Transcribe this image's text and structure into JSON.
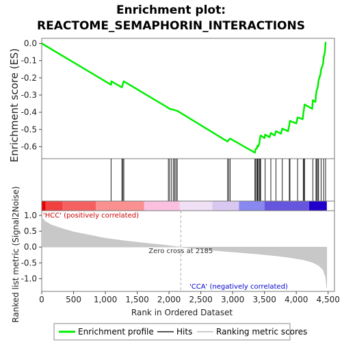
{
  "chart_data": {
    "type": "line",
    "title_line1": "Enrichment plot:",
    "title_line2": "REACTOME_SEMAPHORIN_INTERACTIONS",
    "es_panel": {
      "ylabel": "Enrichment score (ES)",
      "ylim": [
        -0.67,
        0.03
      ],
      "yticks": [
        "0.0",
        "-0.1",
        "-0.2",
        "-0.3",
        "-0.4",
        "-0.5",
        "-0.6"
      ],
      "ytick_values": [
        0.0,
        -0.1,
        -0.2,
        -0.3,
        -0.4,
        -0.5,
        -0.6
      ],
      "line_color": "#00ee00",
      "points": [
        [
          0,
          0.0
        ],
        [
          1090,
          -0.24
        ],
        [
          1095,
          -0.22
        ],
        [
          1260,
          -0.255
        ],
        [
          1275,
          -0.235
        ],
        [
          1290,
          -0.22
        ],
        [
          1990,
          -0.375
        ],
        [
          2010,
          -0.38
        ],
        [
          2040,
          -0.383
        ],
        [
          2070,
          -0.385
        ],
        [
          2090,
          -0.388
        ],
        [
          2110,
          -0.39
        ],
        [
          2130,
          -0.392
        ],
        [
          2920,
          -0.57
        ],
        [
          2940,
          -0.56
        ],
        [
          2960,
          -0.553
        ],
        [
          3350,
          -0.635
        ],
        [
          3360,
          -0.615
        ],
        [
          3380,
          -0.61
        ],
        [
          3390,
          -0.595
        ],
        [
          3400,
          -0.6
        ],
        [
          3420,
          -0.58
        ],
        [
          3430,
          -0.55
        ],
        [
          3440,
          -0.535
        ],
        [
          3500,
          -0.55
        ],
        [
          3510,
          -0.53
        ],
        [
          3580,
          -0.545
        ],
        [
          3600,
          -0.52
        ],
        [
          3660,
          -0.535
        ],
        [
          3680,
          -0.51
        ],
        [
          3760,
          -0.525
        ],
        [
          3780,
          -0.495
        ],
        [
          3870,
          -0.51
        ],
        [
          3890,
          -0.475
        ],
        [
          3900,
          -0.45
        ],
        [
          4000,
          -0.465
        ],
        [
          4020,
          -0.43
        ],
        [
          4100,
          -0.44
        ],
        [
          4110,
          -0.41
        ],
        [
          4120,
          -0.385
        ],
        [
          4130,
          -0.355
        ],
        [
          4250,
          -0.38
        ],
        [
          4260,
          -0.33
        ],
        [
          4300,
          -0.34
        ],
        [
          4310,
          -0.3
        ],
        [
          4320,
          -0.275
        ],
        [
          4340,
          -0.25
        ],
        [
          4350,
          -0.215
        ],
        [
          4380,
          -0.18
        ],
        [
          4390,
          -0.15
        ],
        [
          4420,
          -0.12
        ],
        [
          4430,
          -0.08
        ],
        [
          4450,
          -0.05
        ],
        [
          4460,
          0.005
        ],
        [
          4470,
          0.005
        ]
      ]
    },
    "hits_panel": {
      "hit_positions": [
        1090,
        1260,
        1275,
        1290,
        1990,
        2010,
        2040,
        2070,
        2090,
        2110,
        2130,
        2920,
        2940,
        2960,
        3350,
        3360,
        3380,
        3390,
        3400,
        3420,
        3430,
        3440,
        3510,
        3600,
        3680,
        3780,
        3890,
        3900,
        4020,
        4110,
        4120,
        4130,
        4260,
        4310,
        4320,
        4340,
        4350,
        4390,
        4430,
        4460
      ]
    },
    "heat_bar": {
      "segments": [
        {
          "from": 0,
          "to": 60,
          "color": "#e80000"
        },
        {
          "from": 60,
          "to": 330,
          "color": "#f04040"
        },
        {
          "from": 330,
          "to": 850,
          "color": "#f56060"
        },
        {
          "from": 850,
          "to": 1610,
          "color": "#fa9090"
        },
        {
          "from": 1610,
          "to": 2170,
          "color": "#fbc0e0"
        },
        {
          "from": 2170,
          "to": 2680,
          "color": "#f0e0f5"
        },
        {
          "from": 2680,
          "to": 3100,
          "color": "#d8c8f0"
        },
        {
          "from": 3100,
          "to": 3500,
          "color": "#8888f0"
        },
        {
          "from": 3500,
          "to": 4200,
          "color": "#6655dd"
        },
        {
          "from": 4200,
          "to": 4480,
          "color": "#2200cc"
        }
      ]
    },
    "metric_panel": {
      "ylabel": "Ranked list metric (Signal2Noise)",
      "ylim": [
        -1.4,
        1.15
      ],
      "yticks": [
        "1.0",
        "0.5",
        "0.0",
        "-0.5",
        "-1.0"
      ],
      "ytick_values": [
        1.0,
        0.5,
        0.0,
        -0.5,
        -1.0
      ],
      "curve": [
        [
          0,
          0.95
        ],
        [
          50,
          0.82
        ],
        [
          150,
          0.7
        ],
        [
          300,
          0.6
        ],
        [
          500,
          0.48
        ],
        [
          750,
          0.38
        ],
        [
          1000,
          0.28
        ],
        [
          1300,
          0.2
        ],
        [
          1600,
          0.13
        ],
        [
          1900,
          0.07
        ],
        [
          2185,
          0.0
        ],
        [
          2500,
          -0.07
        ],
        [
          2800,
          -0.12
        ],
        [
          3100,
          -0.17
        ],
        [
          3400,
          -0.22
        ],
        [
          3700,
          -0.28
        ],
        [
          3900,
          -0.33
        ],
        [
          4100,
          -0.4
        ],
        [
          4250,
          -0.48
        ],
        [
          4350,
          -0.58
        ],
        [
          4420,
          -0.72
        ],
        [
          4460,
          -0.95
        ],
        [
          4480,
          -1.3
        ]
      ],
      "zero_cross": 2185,
      "zero_cross_label": "Zero cross at 2185",
      "pos_label": "'HCC' (positively correlated)",
      "neg_label": "'CCA' (negatively correlated)",
      "pos_color": "#cc0000",
      "neg_color": "#0000cc"
    },
    "xaxis": {
      "xlabel": "Rank in Ordered Dataset",
      "xlim": [
        0,
        4600
      ],
      "xticks": [
        "0",
        "500",
        "1,000",
        "1,500",
        "2,000",
        "2,500",
        "3,000",
        "3,500",
        "4,000",
        "4,500"
      ],
      "xtick_values": [
        0,
        500,
        1000,
        1500,
        2000,
        2500,
        3000,
        3500,
        4000,
        4500
      ]
    },
    "legend": {
      "placement": "bottom",
      "entries": [
        {
          "name": "Enrichment profile",
          "color": "#00ee00"
        },
        {
          "name": "Hits",
          "color": "#555555"
        },
        {
          "name": "Ranking metric scores",
          "color": "#cccccc"
        }
      ]
    }
  }
}
